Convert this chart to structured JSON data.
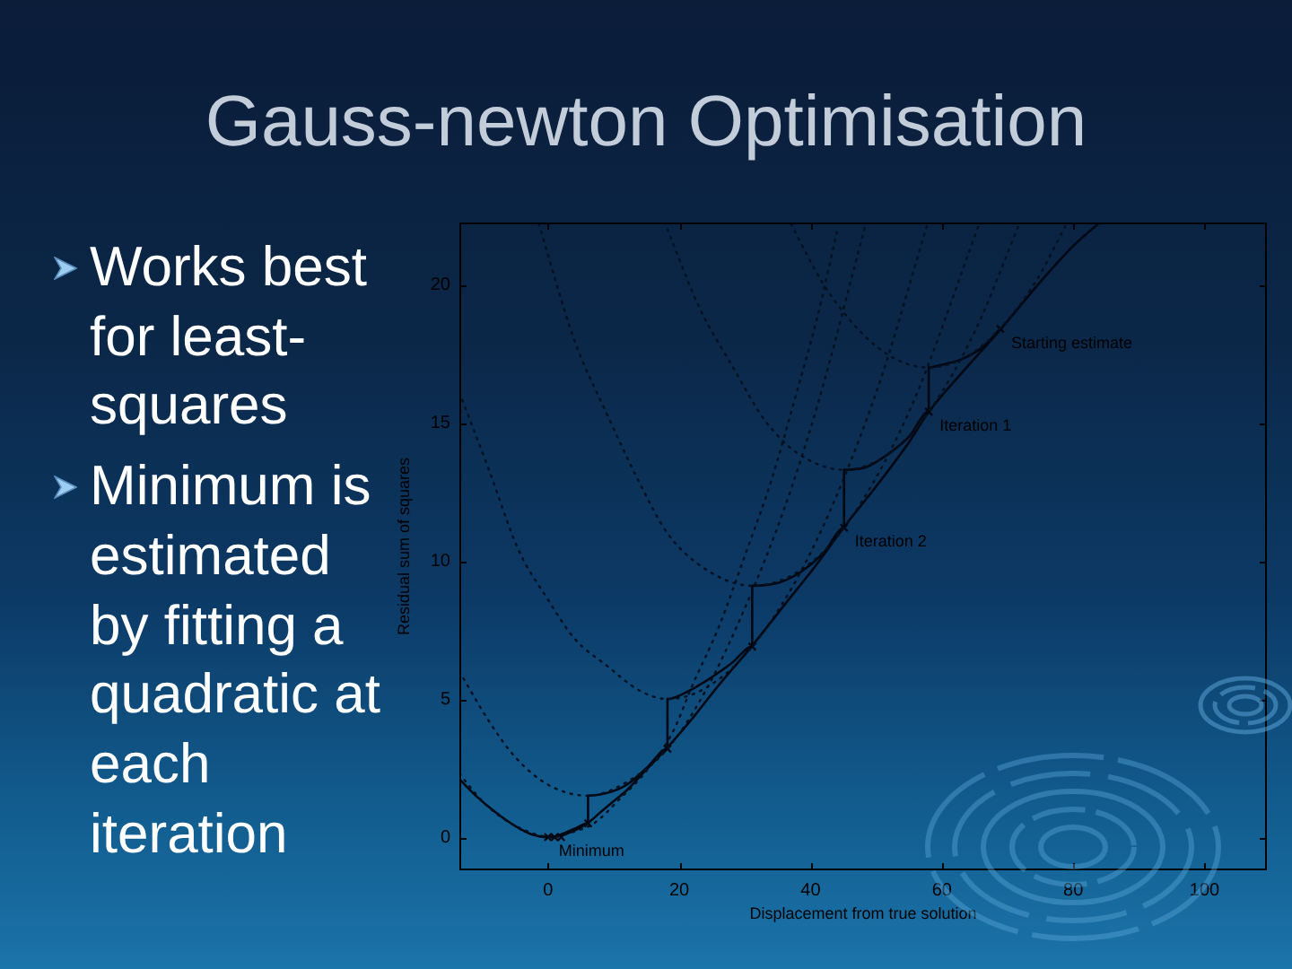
{
  "chart_data": {
    "type": "line",
    "title": "Gauss-newton Optimisation",
    "xlabel": "Displacement from true solution",
    "ylabel": "Residual sum of squares",
    "annotations": [
      "Works best for least-squares",
      "Minimum is estimated by fitting a quadratic at each iteration",
      {
        "text": "Starting estimate",
        "x": 68.9,
        "y": 18.4
      },
      {
        "text": "Iteration 1",
        "x": 58,
        "y": 15.4
      },
      {
        "text": "Iteration 2",
        "x": 45.1,
        "y": 11.2
      },
      {
        "text": "Minimum",
        "x": 0,
        "y": 0
      }
    ],
    "xlim": [
      -13.5,
      109.5
    ],
    "xticks": [
      0,
      20,
      40,
      60,
      80,
      100
    ],
    "ylim": [
      -1.2,
      22.25
    ],
    "yticks": [
      0,
      5,
      10,
      15,
      20
    ],
    "series": [
      {
        "type": "line",
        "color": "#06101e",
        "line_style": "dotted",
        "x": [
          37,
          42,
          48,
          53,
          58,
          63,
          68,
          74,
          79
        ],
        "values": [
          22.2,
          20.0,
          18.2,
          17.3,
          17.0,
          17.3,
          18.2,
          20.0,
          22.2
        ]
      },
      {
        "type": "line",
        "color": "#06101e",
        "line_style": "dotted",
        "x": [
          18.2,
          23,
          28.2,
          33,
          38,
          45.1,
          52,
          58,
          65,
          71.8
        ],
        "values": [
          22.0,
          19.2,
          17.0,
          15.1,
          13.9,
          13.3,
          13.9,
          15.4,
          18.3,
          22.2
        ]
      },
      {
        "type": "line",
        "color": "#06101e",
        "line_style": "dotted",
        "x": [
          -1.4,
          4,
          9,
          14,
          18.2,
          24,
          31.1,
          38,
          45.1,
          55,
          65.7
        ],
        "values": [
          22.2,
          18.0,
          15.3,
          12.8,
          11.0,
          9.7,
          9.1,
          9.6,
          11.2,
          15.4,
          22.2
        ]
      },
      {
        "type": "line",
        "color": "#06101e",
        "line_style": "dotted",
        "x": [
          -13.5,
          -9,
          -4.5,
          0,
          4,
          9,
          14,
          18.2,
          24,
          31.1,
          40,
          50,
          57.8
        ],
        "values": [
          16.1,
          13.3,
          10.4,
          8.6,
          7.2,
          6.2,
          5.3,
          5.0,
          5.4,
          6.9,
          10.3,
          16.1,
          22.2
        ]
      },
      {
        "type": "line",
        "color": "#06101e",
        "line_style": "dotted",
        "x": [
          -13.5,
          -9,
          -5,
          0,
          6.1,
          12,
          18.2,
          24,
          30,
          36,
          41,
          48.4
        ],
        "values": [
          6.0,
          4.2,
          2.9,
          1.9,
          1.5,
          2.0,
          3.2,
          5.3,
          8.3,
          11.9,
          15.6,
          22.2
        ]
      },
      {
        "type": "line",
        "color": "#06101e",
        "line_style": "dotted",
        "x": [
          -13.5,
          -10,
          -7,
          -3,
          0.5,
          4,
          7,
          11,
          15,
          19,
          22,
          26,
          30,
          34,
          38,
          41,
          44
        ],
        "values": [
          2.3,
          1.3,
          0.7,
          0.2,
          0.0,
          0.2,
          0.5,
          1.4,
          2.4,
          3.8,
          5.5,
          7.6,
          10.2,
          12.9,
          16.2,
          18.8,
          21.9
        ]
      },
      {
        "type": "line",
        "color": "#000814",
        "line_style": "solid",
        "x": [
          -13.5,
          -11,
          -8,
          -5,
          -2.5,
          0,
          2.5,
          6,
          8,
          10,
          12,
          14,
          18,
          22,
          26,
          31,
          36,
          41,
          45,
          50,
          55,
          58,
          63,
          69,
          75,
          80,
          83.8
        ],
        "values": [
          2.1,
          1.5,
          0.9,
          0.4,
          0.1,
          0,
          0.1,
          0.5,
          0.9,
          1.3,
          1.7,
          2.2,
          3.2,
          4.3,
          5.5,
          6.9,
          8.4,
          9.9,
          11.2,
          12.7,
          14.3,
          15.4,
          16.8,
          18.4,
          20.1,
          21.4,
          22.2
        ]
      },
      {
        "type": "line",
        "color": "#000814",
        "line_style": "solid",
        "x": [
          68.9,
          66,
          63,
          60,
          58,
          58,
          55,
          52,
          48.5,
          45.1,
          45.1,
          42,
          38.5,
          35,
          31.1,
          31.1,
          28,
          25,
          21.5,
          18.2,
          18.2,
          15,
          12,
          9,
          6.1,
          6.1,
          4,
          2,
          1
        ],
        "values": [
          18.4,
          17.7,
          17.3,
          17.1,
          17.0,
          15.4,
          14.5,
          13.9,
          13.4,
          13.3,
          11.2,
          10.3,
          9.6,
          9.2,
          9.1,
          6.9,
          6.3,
          5.8,
          5.3,
          5.0,
          3.2,
          2.5,
          1.9,
          1.6,
          1.5,
          0.5,
          0.3,
          0.1,
          0
        ]
      },
      {
        "type": "scatter",
        "color": "#000814",
        "marker": "cross",
        "x": [
          68.9,
          58,
          45.1,
          31.1,
          18.2,
          6.1,
          2,
          1,
          0
        ],
        "values": [
          18.4,
          15.4,
          11.2,
          6.9,
          3.2,
          0.5,
          0,
          0,
          0
        ]
      }
    ]
  }
}
